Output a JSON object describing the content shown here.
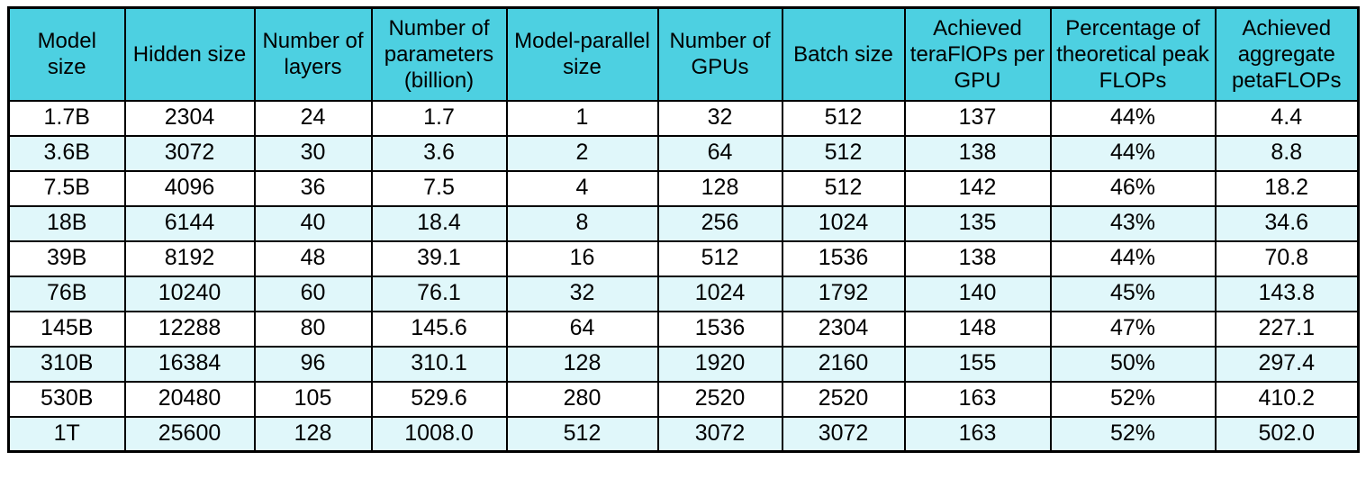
{
  "chart_data": {
    "type": "table",
    "columns": [
      "Model size",
      "Hidden size",
      "Number of layers",
      "Number of parameters (billion)",
      "Model-parallel size",
      "Number of GPUs",
      "Batch size",
      "Achieved teraFlOPs per GPU",
      "Percentage of theoretical peak FLOPs",
      "Achieved aggregate petaFLOPs"
    ],
    "rows": [
      [
        "1.7B",
        "2304",
        "24",
        "1.7",
        "1",
        "32",
        "512",
        "137",
        "44%",
        "4.4"
      ],
      [
        "3.6B",
        "3072",
        "30",
        "3.6",
        "2",
        "64",
        "512",
        "138",
        "44%",
        "8.8"
      ],
      [
        "7.5B",
        "4096",
        "36",
        "7.5",
        "4",
        "128",
        "512",
        "142",
        "46%",
        "18.2"
      ],
      [
        "18B",
        "6144",
        "40",
        "18.4",
        "8",
        "256",
        "1024",
        "135",
        "43%",
        "34.6"
      ],
      [
        "39B",
        "8192",
        "48",
        "39.1",
        "16",
        "512",
        "1536",
        "138",
        "44%",
        "70.8"
      ],
      [
        "76B",
        "10240",
        "60",
        "76.1",
        "32",
        "1024",
        "1792",
        "140",
        "45%",
        "143.8"
      ],
      [
        "145B",
        "12288",
        "80",
        "145.6",
        "64",
        "1536",
        "2304",
        "148",
        "47%",
        "227.1"
      ],
      [
        "310B",
        "16384",
        "96",
        "310.1",
        "128",
        "1920",
        "2160",
        "155",
        "50%",
        "297.4"
      ],
      [
        "530B",
        "20480",
        "105",
        "529.6",
        "280",
        "2520",
        "2520",
        "163",
        "52%",
        "410.2"
      ],
      [
        "1T",
        "25600",
        "128",
        "1008.0",
        "512",
        "3072",
        "3072",
        "163",
        "52%",
        "502.0"
      ]
    ],
    "layout": {
      "grid": "on",
      "header_position": "top",
      "row_striping": "even rows shaded"
    }
  },
  "colors": {
    "header_bg": "#4DD0E1",
    "stripe_bg": "#E0F7FA",
    "row_bg": "#FFFFFF",
    "border": "#000000",
    "text": "#000000"
  }
}
